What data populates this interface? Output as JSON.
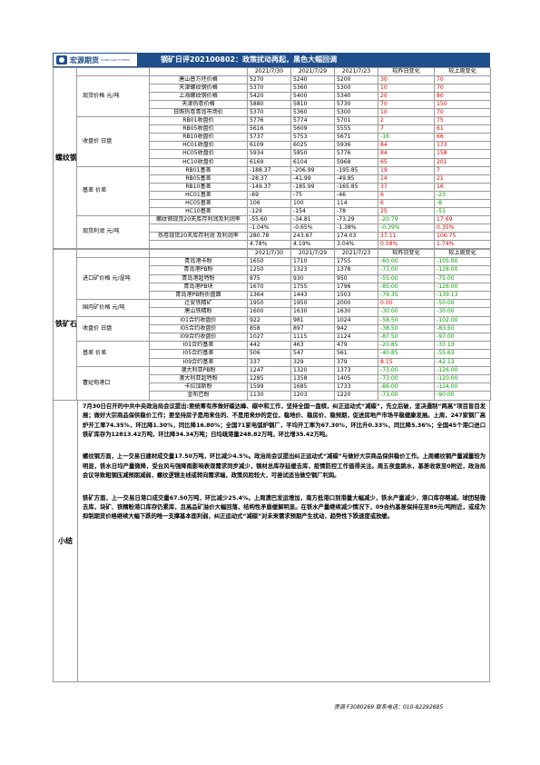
{
  "header": {
    "logo_name": "宏源期货",
    "logo_sub": "HONGYUAN FUTURES",
    "title": "钢矿日评202100802：政策扰动再起，黑色大幅回调"
  },
  "steel": {
    "section": "螺纹钢",
    "dates": [
      "2021/7/30",
      "2021/7/29",
      "2021/7/23",
      "较昨日变化",
      "较上周变化"
    ],
    "groups": [
      {
        "label": "现货价格 元/吨",
        "rows": [
          [
            "唐山普方坯价格",
            "5270",
            "5240",
            "5200",
            "30",
            "70"
          ],
          [
            "天津螺纹钢价格",
            "5370",
            "5360",
            "5300",
            "10",
            "70"
          ],
          [
            "上海螺纹钢价格",
            "5420",
            "5400",
            "5340",
            "20",
            "80"
          ],
          [
            "天津热卷价格",
            "5880",
            "5810",
            "5730",
            "70",
            "150"
          ],
          [
            "日照热卷青岛市场价",
            "5370",
            "5360",
            "5300",
            "10",
            "70"
          ]
        ]
      },
      {
        "label": "收盘价 日盘",
        "rows": [
          [
            "RB01收盘价",
            "5776",
            "5774",
            "5701",
            "2",
            "75"
          ],
          [
            "RB05收盘价",
            "5616",
            "5609",
            "5555",
            "7",
            "61"
          ],
          [
            "RB10收盘价",
            "5737",
            "5753",
            "5671",
            "-16",
            "66"
          ],
          [
            "HC01收盘价",
            "6109",
            "6025",
            "5936",
            "84",
            "173"
          ],
          [
            "HC05收盘价",
            "5934",
            "5850",
            "5776",
            "84",
            "158"
          ],
          [
            "HC10收盘价",
            "6169",
            "6104",
            "5968",
            "65",
            "201"
          ]
        ]
      },
      {
        "label": "基差 价差",
        "rows": [
          [
            "RB01基差",
            "-188.37",
            "-206.99",
            "-195.85",
            "19",
            "7"
          ],
          [
            "RB05基差",
            "-28.37",
            "-41.99",
            "-49.85",
            "14",
            "21"
          ],
          [
            "RB10基差",
            "-149.37",
            "-185.99",
            "-165.85",
            "37",
            "16"
          ],
          [
            "HC01基差",
            "-69",
            "-75",
            "-46",
            "6",
            "-23"
          ],
          [
            "HC05基差",
            "106",
            "100",
            "114",
            "6",
            "-8"
          ],
          [
            "HC10基差",
            "-129",
            "-154",
            "-78",
            "25",
            "-51"
          ]
        ]
      },
      {
        "label": "现货利润 元/吨",
        "rows": [
          [
            "螺纹钢现货20天库存利润及利润率",
            "-55.60",
            "-34.81",
            "-73.29",
            "-20.79",
            "17.69"
          ],
          [
            "",
            "-1.04%",
            "-0.65%",
            "-1.38%",
            "-0.39%",
            "0.35%"
          ],
          [
            "热卷现货20天库存利润 及利润率",
            "280.78",
            "243.67",
            "174.03",
            "37.11",
            "106.75"
          ],
          [
            "",
            "4.78%",
            "4.19%",
            "3.04%",
            "0.58%",
            "1.74%"
          ]
        ]
      }
    ]
  },
  "ore": {
    "section": "铁矿石",
    "dates": [
      "2021/7/30",
      "2021/7/29",
      "2021/7/23",
      "较昨日变化",
      "较上周变化"
    ],
    "groups": [
      {
        "label": "进口矿价格 元/湿吨",
        "rows": [
          [
            "青岛港卡粉",
            "1650",
            "1710",
            "1755",
            "-60.00",
            "-105.00"
          ],
          [
            "青岛港PB粉",
            "1250",
            "1323",
            "1378",
            "-73.00",
            "-128.00"
          ],
          [
            "青岛港超特粉",
            "875",
            "930",
            "950",
            "-55.00",
            "-75.00"
          ],
          [
            "青岛港PB块",
            "1670",
            "1755",
            "1796",
            "-85.00",
            "-126.00"
          ],
          [
            "青岛港PB粉折盘面",
            "1364",
            "1443",
            "1503",
            "-79.35",
            "-139.13"
          ]
        ]
      },
      {
        "label": "国内矿价格 元/吨",
        "rows": [
          [
            "迁安铁精矿",
            "1950",
            "1950",
            "2000",
            "0.00",
            "-50.00"
          ],
          [
            "唐山铁精粉",
            "1600",
            "1630",
            "1630",
            "-30.00",
            "-30.00"
          ]
        ]
      },
      {
        "label": "收盘价 日盘",
        "rows": [
          [
            "I01合约收盘价",
            "922",
            "981",
            "1024",
            "-58.50",
            "-102.00"
          ],
          [
            "I05合约收盘价",
            "858",
            "897",
            "942",
            "-38.50",
            "-83.50"
          ],
          [
            "I09合约收盘价",
            "1027",
            "1115",
            "1124",
            "-87.50",
            "-97.00"
          ]
        ]
      },
      {
        "label": "基差 价差",
        "rows": [
          [
            "I01合约基差",
            "442",
            "463",
            "479",
            "-20.85",
            "-37.13"
          ],
          [
            "I05合约基差",
            "506",
            "547",
            "561",
            "-40.85",
            "-55.63"
          ],
          [
            "I09合约基差",
            "337",
            "329",
            "379",
            "8.15",
            "-42.13"
          ]
        ]
      },
      {
        "label": "曹妃甸港口",
        "rows": [
          [
            "澳大利亚PB粉",
            "1247",
            "1320",
            "1373",
            "-73.00",
            "-126.00"
          ],
          [
            "澳大利亚超特粉",
            "1285",
            "1358",
            "1405",
            "-73.00",
            "-120.00"
          ],
          [
            "卡拉加斯粉",
            "1599",
            "1685",
            "1733",
            "-86.00",
            "-134.00"
          ],
          [
            "金布巴粉",
            "1130",
            "1203",
            "1220",
            "-73.00",
            "-90.00"
          ]
        ]
      }
    ]
  },
  "summary": {
    "label": "小结",
    "paragraphs": [
      "7月30日召开的中共中央政治局会议提出:要统筹有序做好碳达峰、碳中和工作，坚持全国一盘棋，纠正运动式“减碳”，先立后破，坚决遏制“两高”项目盲目发展；做好大宗商品保供稳价工作；要坚持房子是用来住的、不是用来炒的定位，稳地价、稳房价、稳预期，促进房地产市场平稳健康发展。上周，247家钢厂高炉开工率74.35%，环比降1.30%，同比降16.80%；全国71家电弧炉钢厂，平均开工率为67.30%，环比升0.33%，同比降5.36%；全国45个港口进口铁矿库存为12813.42万吨，环比降34.34万吨；日均疏港量248.82万吨，环比增35.42万吨。",
      "螺纹钢方面，上一交易日建材成交量17.50万吨，环比减少4.5%。政治局会议提出纠正运动式“减碳”与做好大宗商品保供稳价工作。上周螺纹钢产量减量较为明显，铁水日均产量微降，受台风与强降雨影响表观需求同步减少，钢材总库存延缓去库，疫情防控工作值得关注。周五夜盘跳水，基差收敛至0附近，政治局会议导致粗钢压减预期减弱，螺纹逻辑主线或转向需求端，政策风险较大，可尝试适当做空钢厂利润。",
      "铁矿方面，上一交易日港口成交量67.50万吨，环比减少25.4%。上周澳巴发运增加，南方抵港口到港量大幅减少，铁水产量减少，港口库存略减。球团轻微去库，块矿、铁精粉港口库存仍累库，且高品矿溢价大幅回落，结构性矛盾缓解明显。在铁水产量继续减少情况下，09合约基差保持在至89元/吨附近，或成为抑制期货价格继续大幅下跌的唯一支撑基本面利弱，纠正运动式“减碳”对未来需求预期产生扰动，趋势性下跌速度或放缓。"
    ]
  },
  "footer": "贾源 F3080269 联系电话：010-82292685"
}
